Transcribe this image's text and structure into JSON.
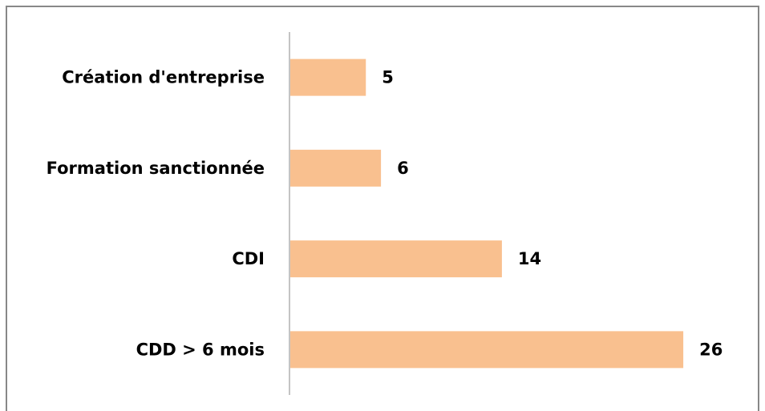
{
  "chart_data": {
    "type": "barh",
    "categories": [
      "Création d'entreprise",
      "Formation sanctionnée",
      "CDI",
      "CDD > 6 mois"
    ],
    "values": [
      5,
      6,
      14,
      26
    ],
    "color": "#f9c08f"
  }
}
